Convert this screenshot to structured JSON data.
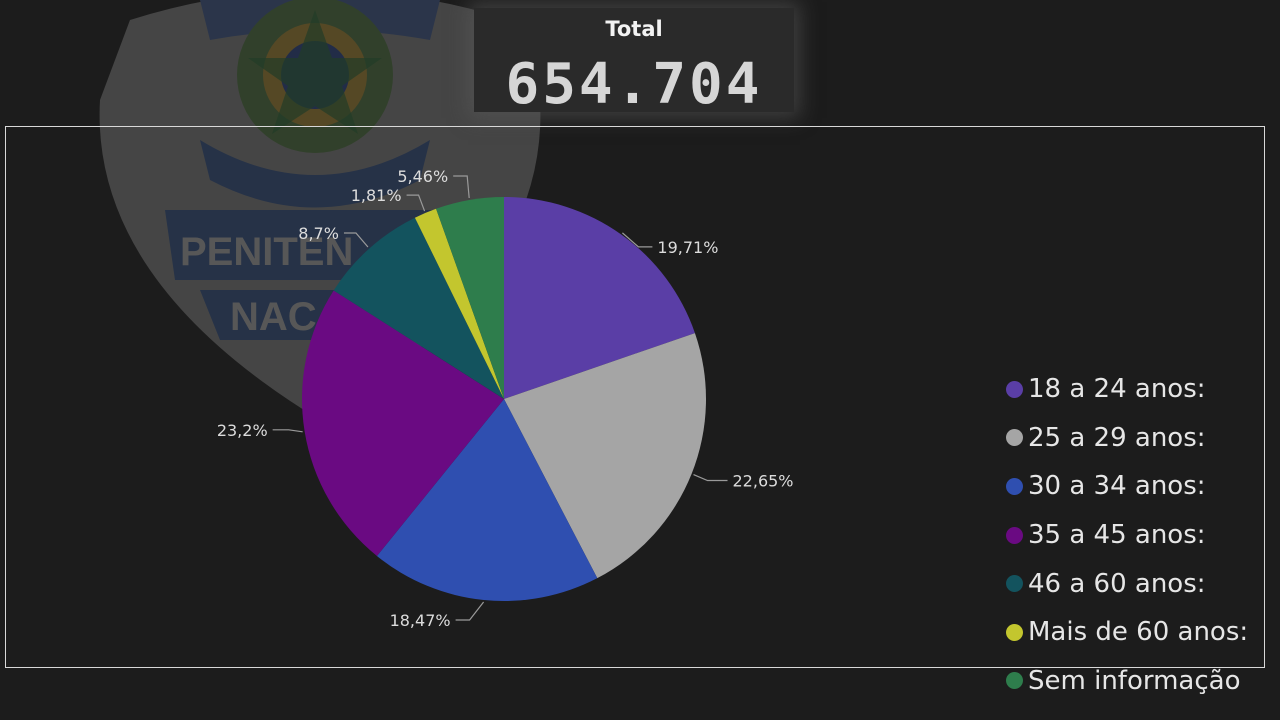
{
  "card": {
    "label": "Total",
    "value": "654.704"
  },
  "chart_data": {
    "type": "pie",
    "categories": [
      "18 a 24 anos:",
      "25 a 29 anos:",
      "30 a 34 anos:",
      "35 a 45 anos:",
      "46 a 60 anos:",
      "Mais de 60 anos:",
      "Sem informação"
    ],
    "values": [
      19.71,
      22.65,
      18.47,
      23.2,
      8.7,
      1.81,
      5.46
    ],
    "data_labels": [
      "19,71%",
      "22,65%",
      "18,47%",
      "23,2%",
      "8,7%",
      "1,81%",
      "5,46%"
    ],
    "colors": [
      "#5a3ea6",
      "#a5a5a5",
      "#2f4fb0",
      "#6a0a82",
      "#13535e",
      "#c3c62e",
      "#2e7d4c"
    ],
    "legend_position": "right",
    "start_angle": "12 o'clock",
    "direction": "clockwise"
  },
  "background_emblem": {
    "icon": "penitentiary-badge-icon",
    "text_lines": [
      "PENITEN",
      "NAC"
    ]
  }
}
